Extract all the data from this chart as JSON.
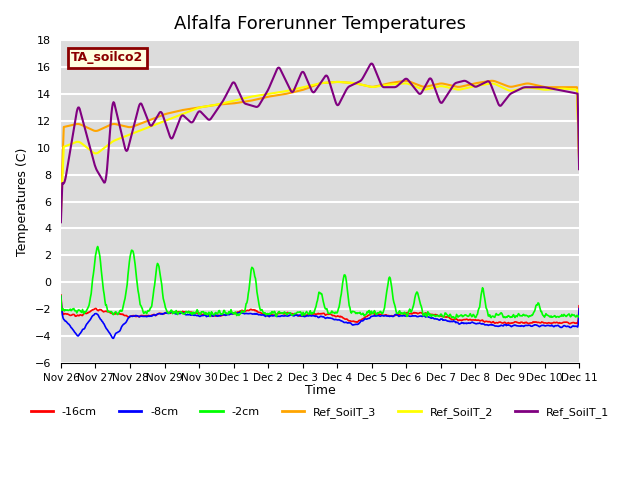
{
  "title": "Alfalfa Forerunner Temperatures",
  "xlabel": "Time",
  "ylabel": "Temperatures (C)",
  "ylim": [
    -6,
    18
  ],
  "yticks": [
    -6,
    -4,
    -2,
    0,
    2,
    4,
    6,
    8,
    10,
    12,
    14,
    16,
    18
  ],
  "annotation_text": "TA_soilco2",
  "annotation_color": "darkred",
  "bg_color": "#dcdcdc",
  "grid_color": "white",
  "legend_labels": [
    "-16cm",
    "-8cm",
    "-2cm",
    "Ref_SoilT_3",
    "Ref_SoilT_2",
    "Ref_SoilT_1"
  ],
  "line_colors": [
    "red",
    "blue",
    "lime",
    "orange",
    "yellow",
    "purple"
  ],
  "line_widths": [
    1.2,
    1.2,
    1.2,
    1.5,
    1.5,
    1.5
  ],
  "xtick_labels": [
    "Nov 26",
    "Nov 27",
    "Nov 28",
    "Nov 29",
    "Nov 30",
    "Dec 1",
    "Dec 2",
    "Dec 3",
    "Dec 4",
    "Dec 5",
    "Dec 6",
    "Dec 7",
    "Dec 8",
    "Dec 9",
    "Dec 10",
    "Dec 11"
  ],
  "num_points_per_day": 48
}
